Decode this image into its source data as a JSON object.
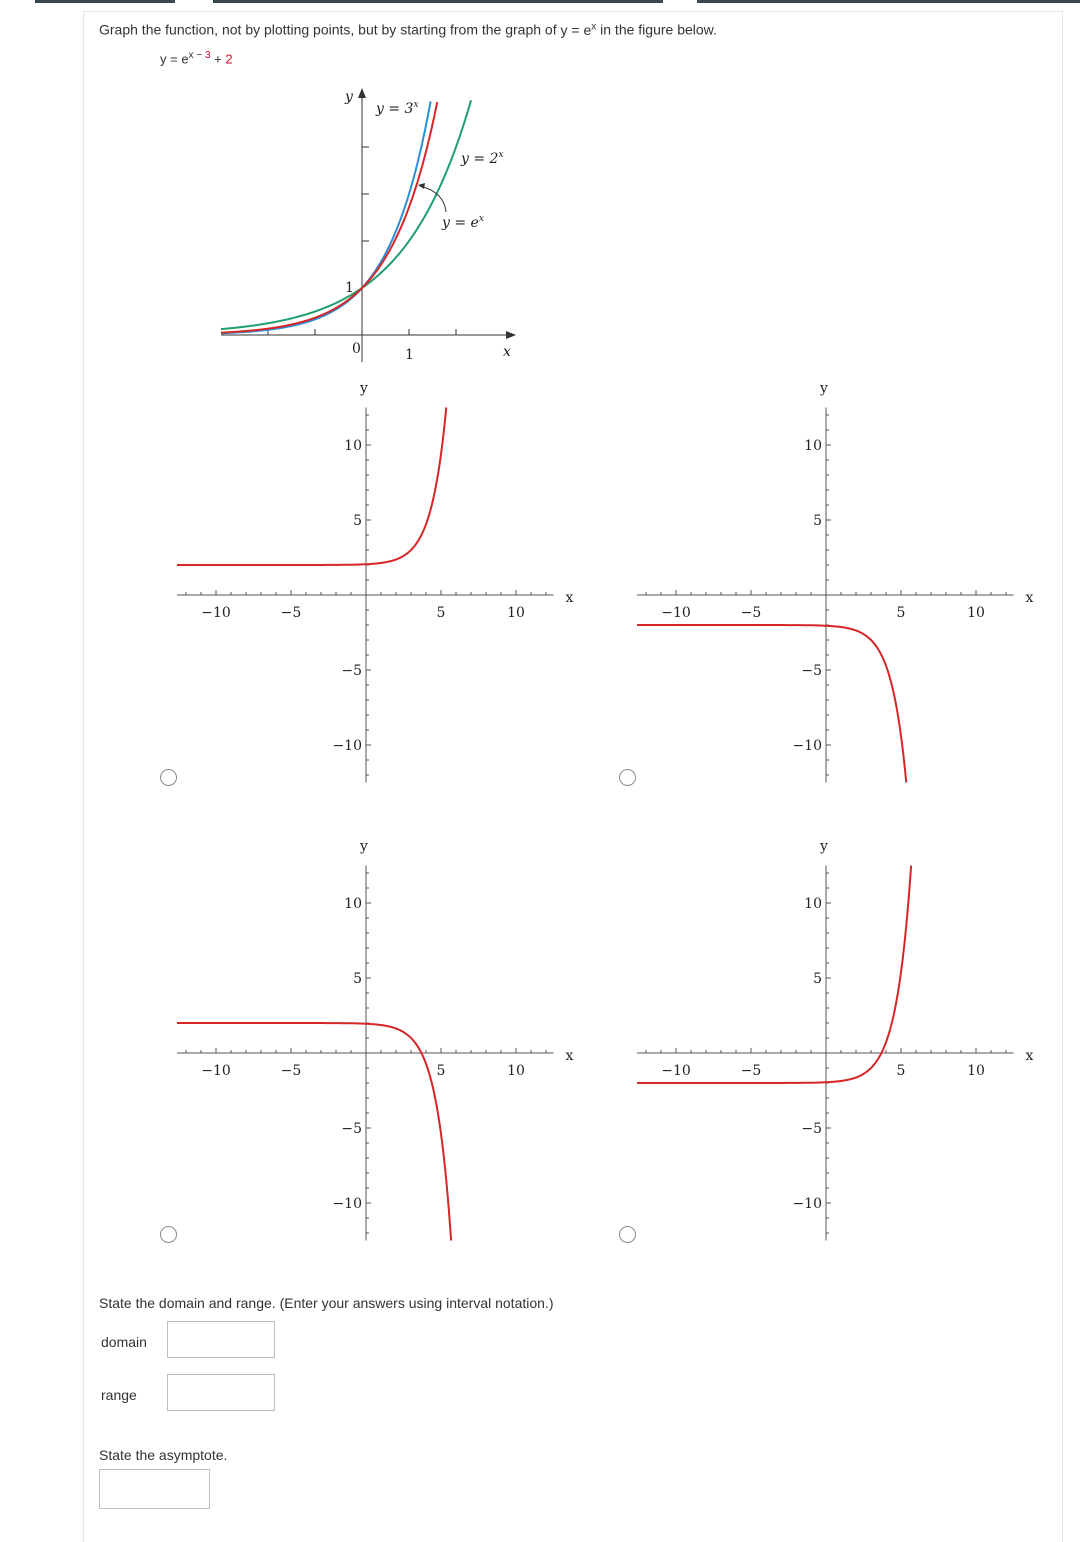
{
  "question": {
    "prompt_before": "Graph the function, not by plotting points, but by starting from the graph of",
    "prompt_func": "y = e",
    "prompt_func_exp": "x",
    "prompt_after": "in the figure below.",
    "function_lhs": "y = e",
    "function_exp_x": "x − ",
    "function_exp_shift": "3",
    "function_plus": " + ",
    "function_vshift": "2"
  },
  "colors": {
    "curve_red": "#d62728",
    "curve_blue": "#2a8fd6",
    "curve_green": "#1f9e6e",
    "answer_red": "#c8102e"
  },
  "chart_data": [
    {
      "type": "line",
      "role": "reference figure",
      "xlabel": "x",
      "ylabel": "y",
      "x_tick_labels": [
        "0",
        "1"
      ],
      "y_tick_labels": [
        "1"
      ],
      "xlim": [
        -3,
        3.2
      ],
      "ylim": [
        0,
        5
      ],
      "series": [
        {
          "name": "y = 3^x",
          "label_base": "y = 3",
          "label_exp": "x",
          "formula": "3^x",
          "color": "#2a8fd6"
        },
        {
          "name": "y = 2^x",
          "label_base": "y = 2",
          "label_exp": "x",
          "formula": "2^x",
          "color": "#1f9e6e"
        },
        {
          "name": "y = e^x",
          "label_base": "y = e",
          "label_exp": "x",
          "formula": "e^x",
          "color": "#d62728"
        }
      ]
    },
    {
      "type": "line",
      "role": "option A",
      "xlabel": "x",
      "ylabel": "y",
      "xlim": [
        -12.5,
        12.5
      ],
      "ylim": [
        -12.5,
        12.5
      ],
      "x_tick_labels": [
        "−10",
        "−5",
        "5",
        "10"
      ],
      "y_tick_labels": [
        "10",
        "5",
        "−5",
        "−10"
      ],
      "formula": "e^(x-3)+2",
      "asymptote_y": 2,
      "color": "#d62728"
    },
    {
      "type": "line",
      "role": "option B",
      "xlabel": "x",
      "ylabel": "y",
      "xlim": [
        -12.5,
        12.5
      ],
      "ylim": [
        -12.5,
        12.5
      ],
      "x_tick_labels": [
        "−10",
        "−5",
        "5",
        "10"
      ],
      "y_tick_labels": [
        "10",
        "5",
        "−5",
        "−10"
      ],
      "formula": "-e^(x-3)-2",
      "asymptote_y": -2,
      "color": "#d62728"
    },
    {
      "type": "line",
      "role": "option C",
      "xlabel": "x",
      "ylabel": "y",
      "xlim": [
        -12.5,
        12.5
      ],
      "ylim": [
        -12.5,
        12.5
      ],
      "x_tick_labels": [
        "−10",
        "−5",
        "5",
        "10"
      ],
      "y_tick_labels": [
        "10",
        "5",
        "−5",
        "−10"
      ],
      "formula": "-e^(x-3)+2",
      "asymptote_y": 2,
      "color": "#d62728"
    },
    {
      "type": "line",
      "role": "option D",
      "xlabel": "x",
      "ylabel": "y",
      "xlim": [
        -12.5,
        12.5
      ],
      "ylim": [
        -12.5,
        12.5
      ],
      "x_tick_labels": [
        "−10",
        "−5",
        "5",
        "10"
      ],
      "y_tick_labels": [
        "10",
        "5",
        "−5",
        "−10"
      ],
      "formula": "e^(x-3)-2",
      "asymptote_y": -2,
      "color": "#d62728"
    }
  ],
  "options": [
    {
      "selected": false
    },
    {
      "selected": false
    },
    {
      "selected": false
    },
    {
      "selected": false
    }
  ],
  "domain_range": {
    "instruction": "State the domain and range. (Enter your answers using interval notation.)",
    "domain_label": "domain",
    "domain_value": "",
    "range_label": "range",
    "range_value": ""
  },
  "asymptote": {
    "instruction": "State the asymptote.",
    "value": ""
  }
}
